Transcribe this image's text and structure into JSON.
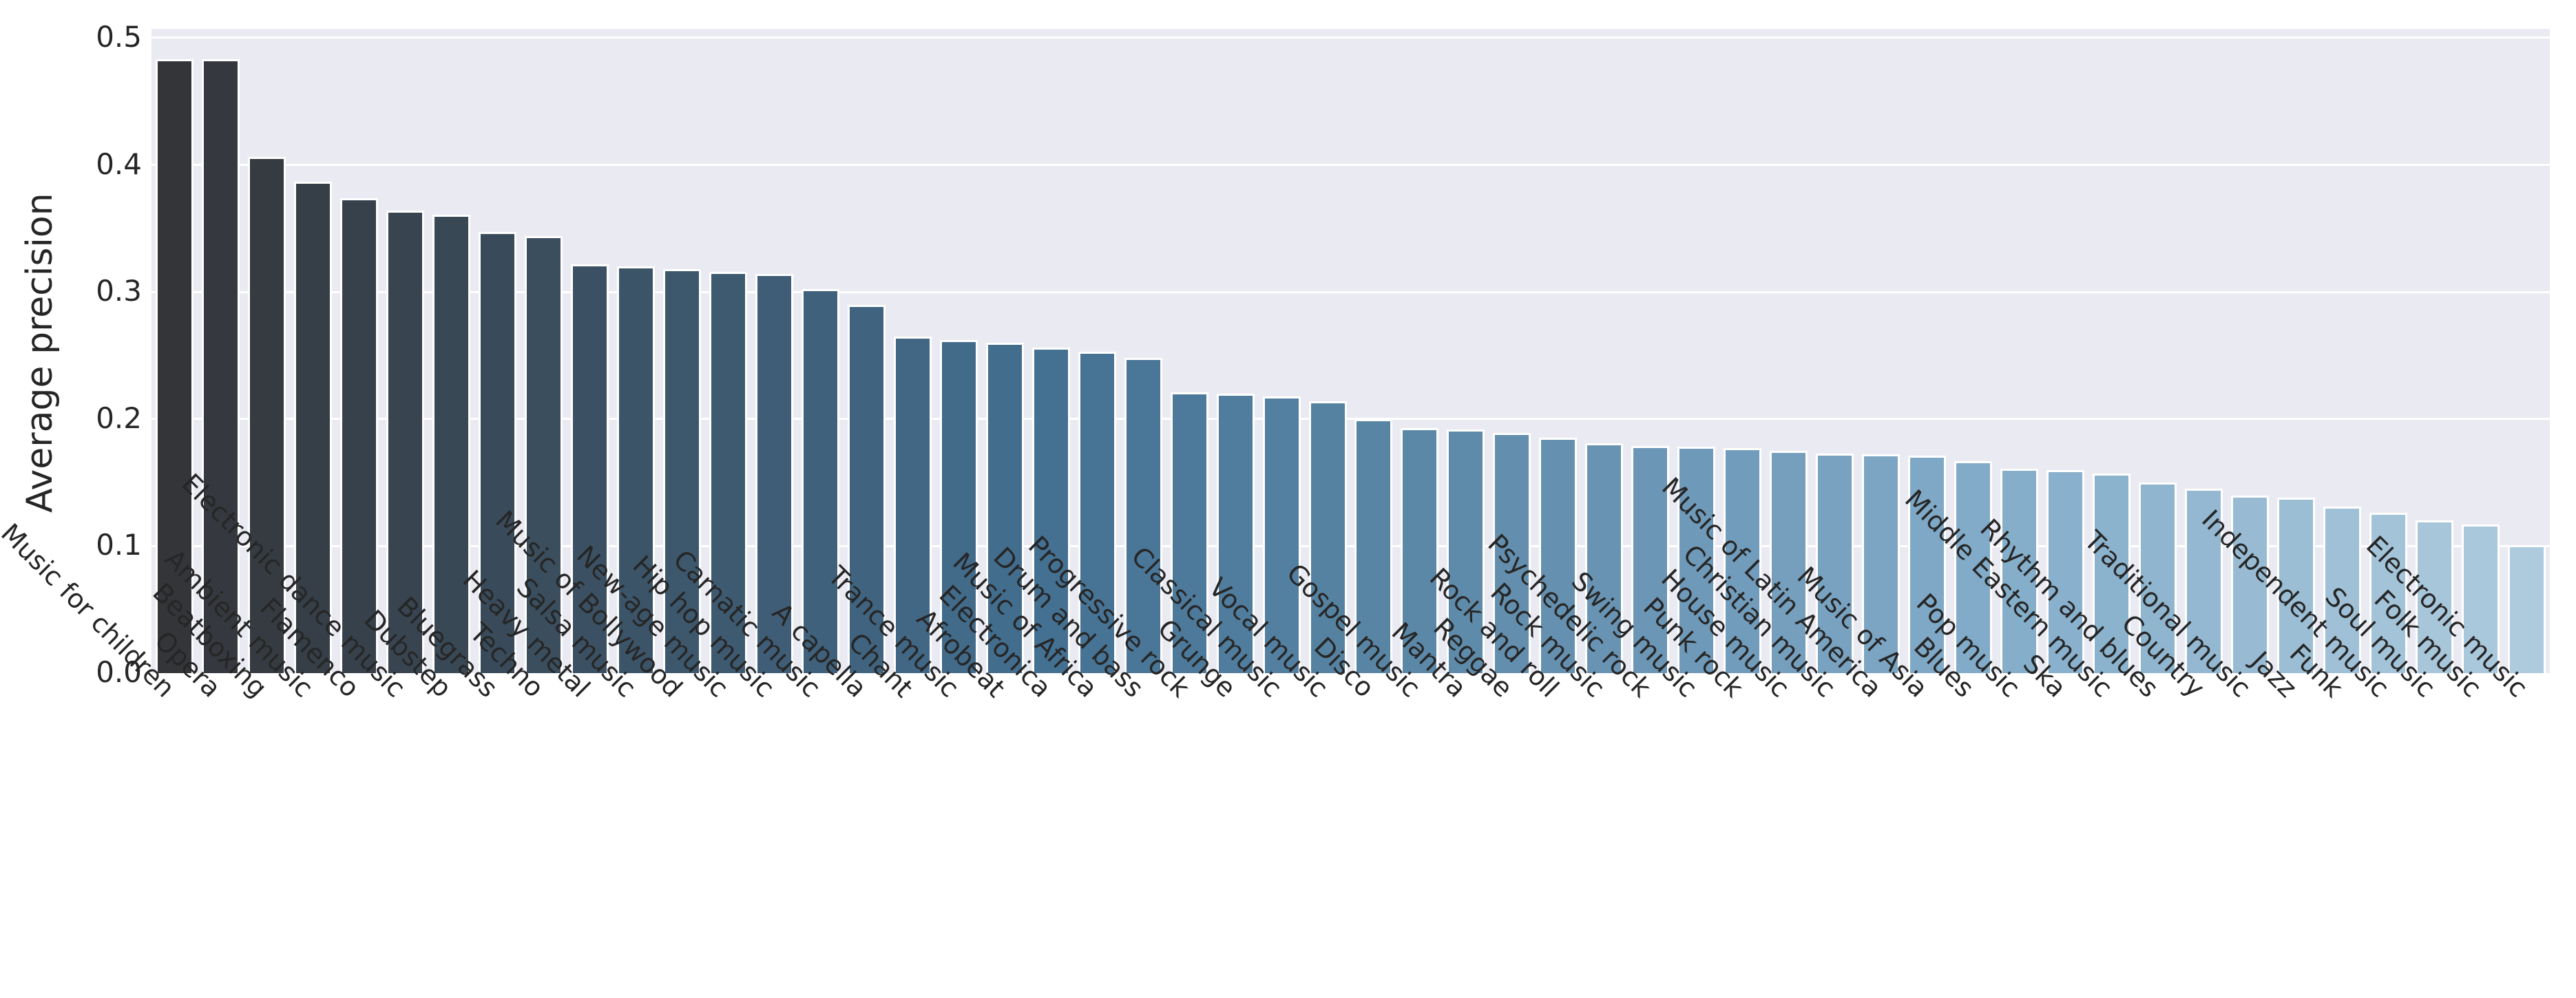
{
  "chart_data": {
    "type": "bar",
    "title": "",
    "xlabel": "",
    "ylabel": "Average precision",
    "categories": [
      "Music for children",
      "Opera",
      "Beatboxing",
      "Ambient music",
      "Flamenco",
      "Electronic dance music",
      "Dubstep",
      "Bluegrass",
      "Techno",
      "Heavy metal",
      "Salsa music",
      "Music of Bollywood",
      "New-age music",
      "Hip hop music",
      "Carnatic music",
      "A capella",
      "Chant",
      "Trance music",
      "Afrobeat",
      "Electronica",
      "Music of Africa",
      "Drum and bass",
      "Progressive rock",
      "Grunge",
      "Classical music",
      "Vocal music",
      "Disco",
      "Gospel music",
      "Mantra",
      "Reggae",
      "Rock and roll",
      "Rock music",
      "Psychedelic rock",
      "Swing music",
      "Punk rock",
      "House music",
      "Christian music",
      "Music of Latin America",
      "Music of Asia",
      "Blues",
      "Pop music",
      "Ska",
      "Middle Eastern music",
      "Rhythm and blues",
      "Country",
      "Traditional music",
      "Jazz",
      "Funk",
      "Independent music",
      "Soul music",
      "Folk music",
      "Electronic music"
    ],
    "values": [
      0.483,
      0.483,
      0.406,
      0.387,
      0.374,
      0.364,
      0.361,
      0.347,
      0.344,
      0.322,
      0.32,
      0.318,
      0.316,
      0.314,
      0.302,
      0.29,
      0.265,
      0.262,
      0.26,
      0.256,
      0.253,
      0.248,
      0.221,
      0.22,
      0.218,
      0.214,
      0.2,
      0.193,
      0.192,
      0.189,
      0.185,
      0.181,
      0.179,
      0.178,
      0.177,
      0.175,
      0.173,
      0.172,
      0.171,
      0.167,
      0.161,
      0.16,
      0.157,
      0.15,
      0.145,
      0.14,
      0.138,
      0.131,
      0.126,
      0.12,
      0.117,
      0.101
    ],
    "ylim": [
      0,
      0.507
    ],
    "ytick_labels": [
      "0.0",
      "0.1",
      "0.2",
      "0.3",
      "0.4",
      "0.5"
    ],
    "ytick_values": [
      0,
      0.1,
      0.2,
      0.3,
      0.4,
      0.5
    ],
    "grid": true,
    "legend": false,
    "plot_bg_color": "#eaeaf2",
    "grid_color": "#ffffff",
    "bar_edge_color": "#ffffff",
    "text_color": "#262626",
    "color_stops": [
      {
        "index": 0,
        "color": "#343539"
      },
      {
        "index": 9,
        "color": "#3b5163"
      },
      {
        "index": 19,
        "color": "#447092"
      },
      {
        "index": 39,
        "color": "#81abc8"
      },
      {
        "index": 51,
        "color": "#aecbdd"
      }
    ]
  }
}
